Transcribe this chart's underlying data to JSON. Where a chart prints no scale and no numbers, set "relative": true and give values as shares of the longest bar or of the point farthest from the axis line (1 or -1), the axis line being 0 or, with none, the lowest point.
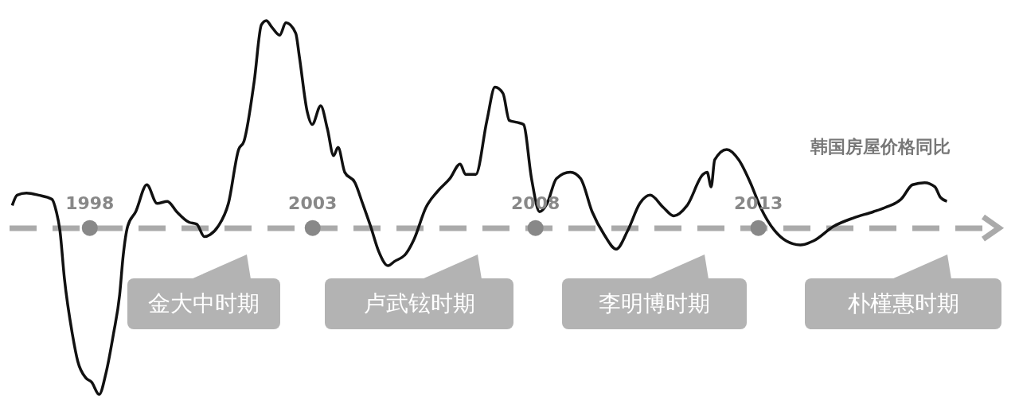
{
  "chart_data": {
    "type": "line",
    "title": "韩国房屋价格同比",
    "relative": true,
    "x": [
      1996.26,
      1996.37,
      1996.58,
      1996.85,
      1997.15,
      1997.25,
      1997.33,
      1997.43,
      1997.61,
      1997.73,
      1997.91,
      1998.04,
      1998.21,
      1998.36,
      1998.53,
      1998.67,
      1998.75,
      1998.85,
      1999.03,
      1999.28,
      1999.51,
      1999.74,
      1999.95,
      2000.22,
      2000.4,
      2000.57,
      2000.7,
      2000.88,
      2001.11,
      2001.34,
      2001.46,
      2001.69,
      2001.85,
      2001.96,
      2002.08,
      2002.26,
      2002.4,
      2002.62,
      2002.7,
      2002.88,
      2002.99,
      2003.18,
      2003.33,
      2003.47,
      2003.57,
      2003.72,
      2003.95,
      2004.12,
      2004.3,
      2004.48,
      2004.69,
      2004.83,
      2005.1,
      2005.28,
      2005.54,
      2005.81,
      2006.08,
      2006.31,
      2006.43,
      2006.66,
      2006.91,
      2007.09,
      2007.27,
      2007.41,
      2007.59,
      2007.73,
      2007.91,
      2008.09,
      2008.26,
      2008.47,
      2008.78,
      2009.01,
      2009.27,
      2009.54,
      2009.81,
      2010.07,
      2010.34,
      2010.57,
      2010.87,
      2011.1,
      2011.4,
      2011.76,
      2011.85,
      2011.94,
      2012.02,
      2012.29,
      2012.56,
      2012.82,
      2013.05,
      2013.36,
      2013.62,
      2013.94,
      2014.24,
      2014.69,
      2015.13,
      2015.58,
      2015.84,
      2016.2,
      2016.46,
      2016.73,
      2016.96,
      2017.08,
      2017.23
    ],
    "series": [
      {
        "color": "#111111",
        "values": [
          0.11,
          0.16,
          0.17,
          0.16,
          0.14,
          0.08,
          -0.01,
          -0.24,
          -0.51,
          -0.64,
          -0.72,
          -0.74,
          -0.8,
          -0.7,
          -0.51,
          -0.32,
          -0.13,
          0.01,
          0.08,
          0.21,
          0.12,
          0.13,
          0.08,
          0.03,
          0.02,
          -0.04,
          -0.03,
          0.01,
          0.12,
          0.38,
          0.42,
          0.71,
          0.98,
          1,
          0.97,
          0.93,
          0.99,
          0.94,
          0.83,
          0.56,
          0.5,
          0.59,
          0.48,
          0.35,
          0.39,
          0.27,
          0.22,
          0.12,
          0.01,
          -0.11,
          -0.18,
          -0.16,
          -0.12,
          -0.05,
          0.1,
          0.18,
          0.24,
          0.31,
          0.26,
          0.26,
          0.52,
          0.68,
          0.65,
          0.52,
          0.51,
          0.5,
          0.24,
          0.08,
          0.12,
          0.24,
          0.27,
          0.24,
          0.08,
          -0.03,
          -0.1,
          -0.01,
          0.12,
          0.16,
          0.1,
          0.06,
          0.11,
          0.26,
          0.27,
          0.2,
          0.33,
          0.38,
          0.33,
          0.22,
          0.1,
          -0.01,
          -0.06,
          -0.08,
          -0.06,
          0.01,
          0.05,
          0.08,
          0.1,
          0.14,
          0.21,
          0.22,
          0.2,
          0.15,
          0.13
        ]
      }
    ],
    "xlim": [
      1996.2,
      2018.4
    ],
    "xticks": [
      1998,
      2003,
      2008,
      2013
    ],
    "ref_lines": [
      {
        "axis": "y",
        "value": 0,
        "color": "#aaaaaa",
        "line_style": "dashed"
      }
    ],
    "annotations": [
      "金大中时期",
      "卢武铉时期",
      "李明博时期",
      "朴槿惠时期"
    ]
  }
}
